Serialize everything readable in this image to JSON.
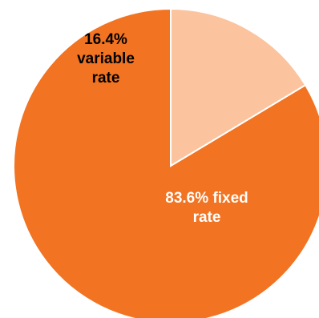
{
  "chart_data": {
    "type": "pie",
    "start_angle_deg": 0,
    "direction": "counterclockwise",
    "slices": [
      {
        "name": "fixed rate",
        "value": 83.6,
        "color": "#F27321",
        "label_color": "#ffffff",
        "label_lines": [
          "83.6% fixed",
          "rate"
        ]
      },
      {
        "name": "variable rate",
        "value": 16.4,
        "color": "#FBC49E",
        "label_color": "#000000",
        "label_lines": [
          "16.4%",
          "variable",
          "rate"
        ]
      }
    ],
    "legend": "none",
    "slice_border_color": "#ffffff"
  }
}
